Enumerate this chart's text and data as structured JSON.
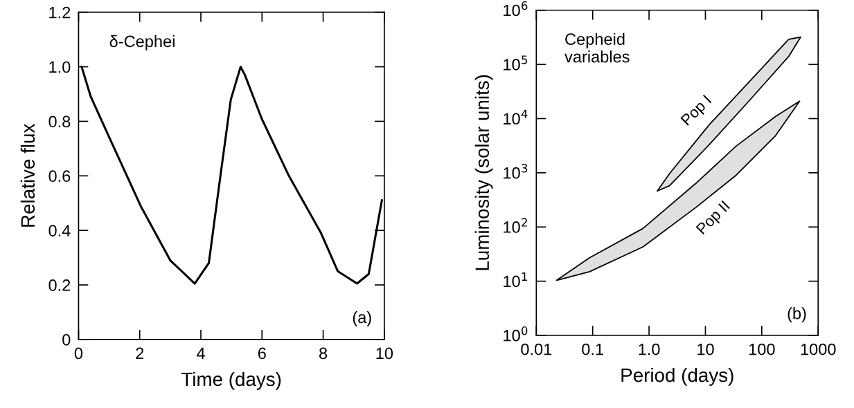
{
  "chart_data": [
    {
      "type": "line",
      "xlabel": "Time (days)",
      "ylabel": "Relative flux",
      "annotations": [
        "δ-Cephei",
        "(a)"
      ],
      "series": [
        {
          "color": "#000000",
          "x": [
            0.1,
            0.4,
            1.05,
            2.03,
            3.0,
            3.8,
            4.26,
            4.64,
            4.98,
            5.3,
            5.44,
            5.99,
            6.88,
            7.93,
            8.48,
            9.11,
            9.49,
            9.92
          ],
          "values": [
            1.0,
            0.89,
            0.73,
            0.49,
            0.29,
            0.205,
            0.28,
            0.6,
            0.88,
            1.0,
            0.97,
            0.81,
            0.6,
            0.39,
            0.25,
            0.205,
            0.24,
            0.51
          ]
        }
      ],
      "xlim": [
        0,
        10
      ],
      "xticks": [
        0,
        2,
        4,
        6,
        8,
        10
      ],
      "ylim": [
        0,
        1.2
      ],
      "yticks": [
        0,
        0.2,
        0.4,
        0.6,
        0.8,
        {
          "value": 1.0,
          "label": "1.0"
        },
        1.2
      ],
      "grid": false,
      "legend": false,
      "marker": "none",
      "line_style": "solid"
    },
    {
      "type": "area",
      "xlabel": "Period (days)",
      "ylabel": "Luminosity (solar units)",
      "log": "xy",
      "annotations": [
        "Cepheid\nvariables",
        "(b)",
        "Pop I",
        "Pop II"
      ],
      "series": [
        {
          "color": "#e0e0e0",
          "x": [
            1.4,
            2.3,
            11.7,
            59,
            300,
            490,
            300,
            59,
            11.7,
            2.3,
            1.4
          ],
          "values": [
            460,
            960,
            7700,
            47000,
            290000,
            320000,
            140000,
            21000,
            3300,
            575,
            460
          ]
        },
        {
          "color": "#e0e0e0",
          "x": [
            0.023,
            0.088,
            0.78,
            6.8,
            35,
            177,
            470,
            177,
            35,
            6.8,
            0.78,
            0.088,
            0.023
          ],
          "values": [
            10.4,
            27,
            94,
            640,
            3100,
            11000,
            21000,
            4900,
            900,
            230,
            43,
            15,
            10.4
          ]
        }
      ],
      "xlim": [
        0.01,
        1000
      ],
      "xticks": [
        0.01,
        0.1,
        {
          "value": 1,
          "label": "1.0"
        },
        10,
        100,
        1000
      ],
      "ylim": [
        1,
        1000000
      ],
      "yticks": [
        {
          "value": 1,
          "label": "10$^{0}$"
        },
        {
          "value": 10,
          "label": "10$^{1}$"
        },
        {
          "value": 100,
          "label": "10$^{2}$"
        },
        {
          "value": 1000,
          "label": "10$^{3}$"
        },
        {
          "value": 10000,
          "label": "10$^{4}$"
        },
        {
          "value": 100000,
          "label": "10$^{5}$"
        },
        {
          "value": 1000000,
          "label": "10$^{6}$"
        }
      ],
      "grid": false,
      "legend": false
    }
  ]
}
